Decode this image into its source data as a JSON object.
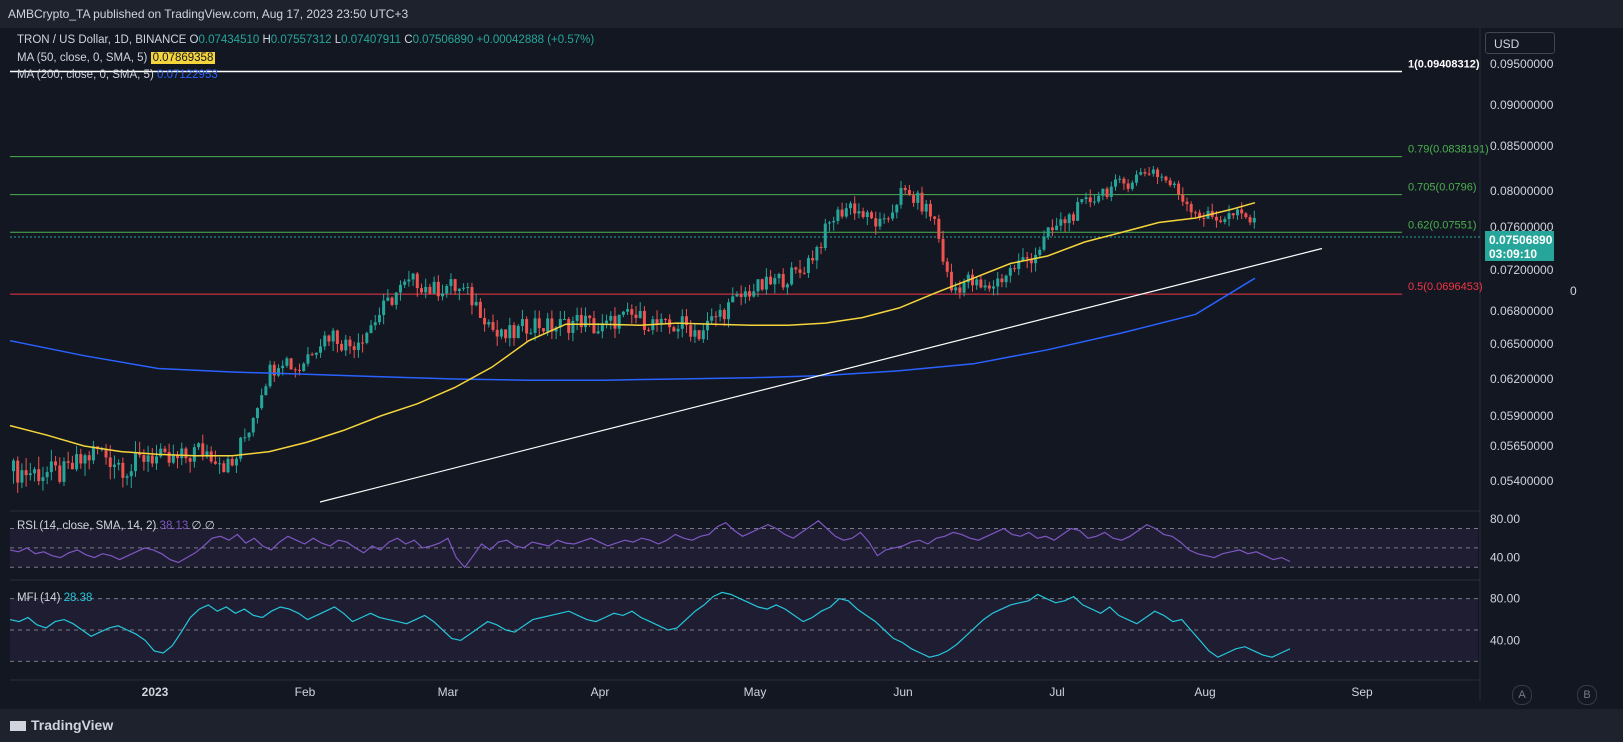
{
  "header": {
    "published": "AMBCrypto_TA published on TradingView.com, Aug 17, 2023 23:50 UTC+3"
  },
  "legend": {
    "symbol": "TRON / US Dollar, 1D, BINANCE",
    "o_label": "O",
    "o": "0.07434510",
    "h_label": "H",
    "h": "0.07557312",
    "l_label": "L",
    "l": "0.07407911",
    "c_label": "C",
    "c": "0.07506890",
    "change": "+0.00042888 (+0.57%)",
    "ma50_label": "MA (50, close, 0, SMA, 5)",
    "ma50_value": "0.07869358",
    "ma200_label": "MA (200, close, 0, SMA, 5)",
    "ma200_value": "0.07122953",
    "rsi_label": "RSI (14, close, SMA, 14, 2)",
    "rsi_value": "38.13",
    "rsi_extra": "∅ ∅",
    "mfi_label": "MFI (14)",
    "mfi_value": "28.38"
  },
  "currency_button": "USD",
  "last_price": {
    "value": "0.07506890",
    "countdown": "03:09:10"
  },
  "right_axis_marker": "0",
  "buttons": {
    "a": "A",
    "b": "B"
  },
  "footer": {
    "logo_text": "TradingView"
  },
  "colors": {
    "background": "#131722",
    "up": "#26a69a",
    "down": "#ef5350",
    "ma50": "#f5d43c",
    "ma200": "#2962ff",
    "rsi": "#7e57c2",
    "mfi": "#26c6da",
    "fib_green": "#4caf50",
    "fib_red": "#f23645"
  },
  "chart_data": [
    {
      "type": "candlestick",
      "x_ticks": [
        "2023",
        "Feb",
        "Mar",
        "Apr",
        "May",
        "Jun",
        "Jul",
        "Aug",
        "Sep"
      ],
      "y_ticks": [
        "0.09500000",
        "0.09000000",
        "0.08500000",
        "0.08000000",
        "0.07600000",
        "0.07200000",
        "0.06800000",
        "0.06500000",
        "0.06200000",
        "0.05900000",
        "0.05650000",
        "0.05400000"
      ],
      "ma50": [
        [
          0,
          0.0582
        ],
        [
          10,
          0.0574
        ],
        [
          20,
          0.0565
        ],
        [
          30,
          0.0561
        ],
        [
          40,
          0.0559
        ],
        [
          50,
          0.0558
        ],
        [
          60,
          0.0558
        ],
        [
          70,
          0.0561
        ],
        [
          80,
          0.0568
        ],
        [
          90,
          0.0578
        ],
        [
          100,
          0.059
        ],
        [
          110,
          0.06
        ],
        [
          120,
          0.0613
        ],
        [
          130,
          0.063
        ],
        [
          140,
          0.0653
        ],
        [
          150,
          0.0668
        ],
        [
          160,
          0.0668
        ],
        [
          170,
          0.0667
        ],
        [
          180,
          0.0669
        ],
        [
          190,
          0.0668
        ],
        [
          200,
          0.0667
        ],
        [
          210,
          0.0667
        ],
        [
          220,
          0.0669
        ],
        [
          230,
          0.0674
        ],
        [
          240,
          0.0683
        ],
        [
          250,
          0.0698
        ],
        [
          260,
          0.0712
        ],
        [
          270,
          0.0726
        ],
        [
          280,
          0.0733
        ],
        [
          290,
          0.0746
        ],
        [
          300,
          0.0755
        ],
        [
          310,
          0.0765
        ],
        [
          320,
          0.077
        ],
        [
          330,
          0.078
        ],
        [
          336,
          0.0787
        ]
      ],
      "ma200": [
        [
          0,
          0.0653
        ],
        [
          20,
          0.064
        ],
        [
          40,
          0.0629
        ],
        [
          60,
          0.0626
        ],
        [
          80,
          0.0624
        ],
        [
          100,
          0.0622
        ],
        [
          120,
          0.062
        ],
        [
          140,
          0.0619
        ],
        [
          160,
          0.0619
        ],
        [
          180,
          0.062
        ],
        [
          200,
          0.0621
        ],
        [
          220,
          0.0623
        ],
        [
          240,
          0.0627
        ],
        [
          260,
          0.0633
        ],
        [
          280,
          0.0645
        ],
        [
          300,
          0.066
        ],
        [
          320,
          0.0677
        ],
        [
          336,
          0.0712
        ]
      ],
      "fib_levels": [
        {
          "label": "1(0.09408312)",
          "value": 0.09408312
        },
        {
          "label": "0.79(0.0838191)",
          "value": 0.0838191
        },
        {
          "label": "0.705(0.0796)",
          "value": 0.0796
        },
        {
          "label": "0.62(0.07551)",
          "value": 0.07551
        },
        {
          "label": "0.5(0.0696453)",
          "value": 0.0696453
        }
      ],
      "trendline": {
        "from": [
          "2022-12-26",
          0.0525
        ],
        "to": [
          "2023-08-26",
          0.074
        ]
      }
    },
    {
      "type": "line",
      "title": "RSI (14, close, SMA, 14, 2)",
      "y_ticks": [
        "80.00",
        "40.00"
      ],
      "levels": [
        70,
        50,
        30
      ],
      "values": [
        48,
        46,
        50,
        44,
        46,
        42,
        40,
        45,
        48,
        43,
        40,
        44,
        42,
        38,
        42,
        46,
        50,
        48,
        44,
        38,
        35,
        40,
        45,
        52,
        60,
        62,
        58,
        64,
        55,
        60,
        52,
        48,
        56,
        62,
        58,
        54,
        60,
        55,
        52,
        58,
        56,
        50,
        45,
        52,
        48,
        56,
        60,
        54,
        58,
        50,
        52,
        55,
        60,
        40,
        30,
        42,
        54,
        48,
        56,
        58,
        52,
        50,
        56,
        54,
        52,
        58,
        55,
        54,
        57,
        60,
        56,
        52,
        55,
        58,
        56,
        60,
        58,
        54,
        58,
        64,
        60,
        58,
        62,
        64,
        72,
        76,
        68,
        62,
        66,
        70,
        74,
        70,
        64,
        60,
        66,
        72,
        78,
        70,
        62,
        58,
        60,
        66,
        56,
        42,
        48,
        50,
        52,
        56,
        58,
        54,
        60,
        62,
        66,
        64,
        60,
        58,
        62,
        66,
        70,
        64,
        62,
        66,
        60,
        62,
        58,
        64,
        70,
        68,
        60,
        62,
        66,
        60,
        58,
        62,
        68,
        74,
        70,
        64,
        62,
        56,
        48,
        44,
        42,
        40,
        44,
        46,
        48,
        44,
        46,
        42,
        38,
        40,
        36
      ]
    },
    {
      "type": "line",
      "title": "MFI (14)",
      "y_ticks": [
        "80.00",
        "40.00"
      ],
      "levels": [
        80,
        50,
        20
      ],
      "values": [
        60,
        58,
        62,
        55,
        52,
        58,
        60,
        56,
        50,
        44,
        48,
        52,
        54,
        50,
        46,
        40,
        30,
        28,
        35,
        48,
        62,
        70,
        74,
        68,
        72,
        66,
        70,
        64,
        62,
        68,
        72,
        70,
        66,
        60,
        64,
        68,
        72,
        66,
        58,
        62,
        66,
        62,
        60,
        58,
        56,
        60,
        64,
        58,
        50,
        42,
        40,
        46,
        52,
        58,
        55,
        50,
        48,
        54,
        60,
        62,
        64,
        66,
        68,
        64,
        60,
        58,
        62,
        66,
        64,
        68,
        62,
        58,
        54,
        50,
        52,
        60,
        68,
        74,
        82,
        86,
        84,
        80,
        76,
        72,
        70,
        74,
        70,
        64,
        58,
        62,
        68,
        72,
        80,
        78,
        70,
        64,
        58,
        50,
        42,
        38,
        32,
        28,
        24,
        26,
        30,
        36,
        44,
        52,
        60,
        66,
        70,
        74,
        76,
        78,
        84,
        80,
        76,
        78,
        82,
        74,
        70,
        66,
        72,
        64,
        60,
        56,
        62,
        68,
        64,
        58,
        60,
        50,
        40,
        30,
        24,
        28,
        32,
        34,
        30,
        26,
        24,
        28,
        32
      ]
    }
  ]
}
